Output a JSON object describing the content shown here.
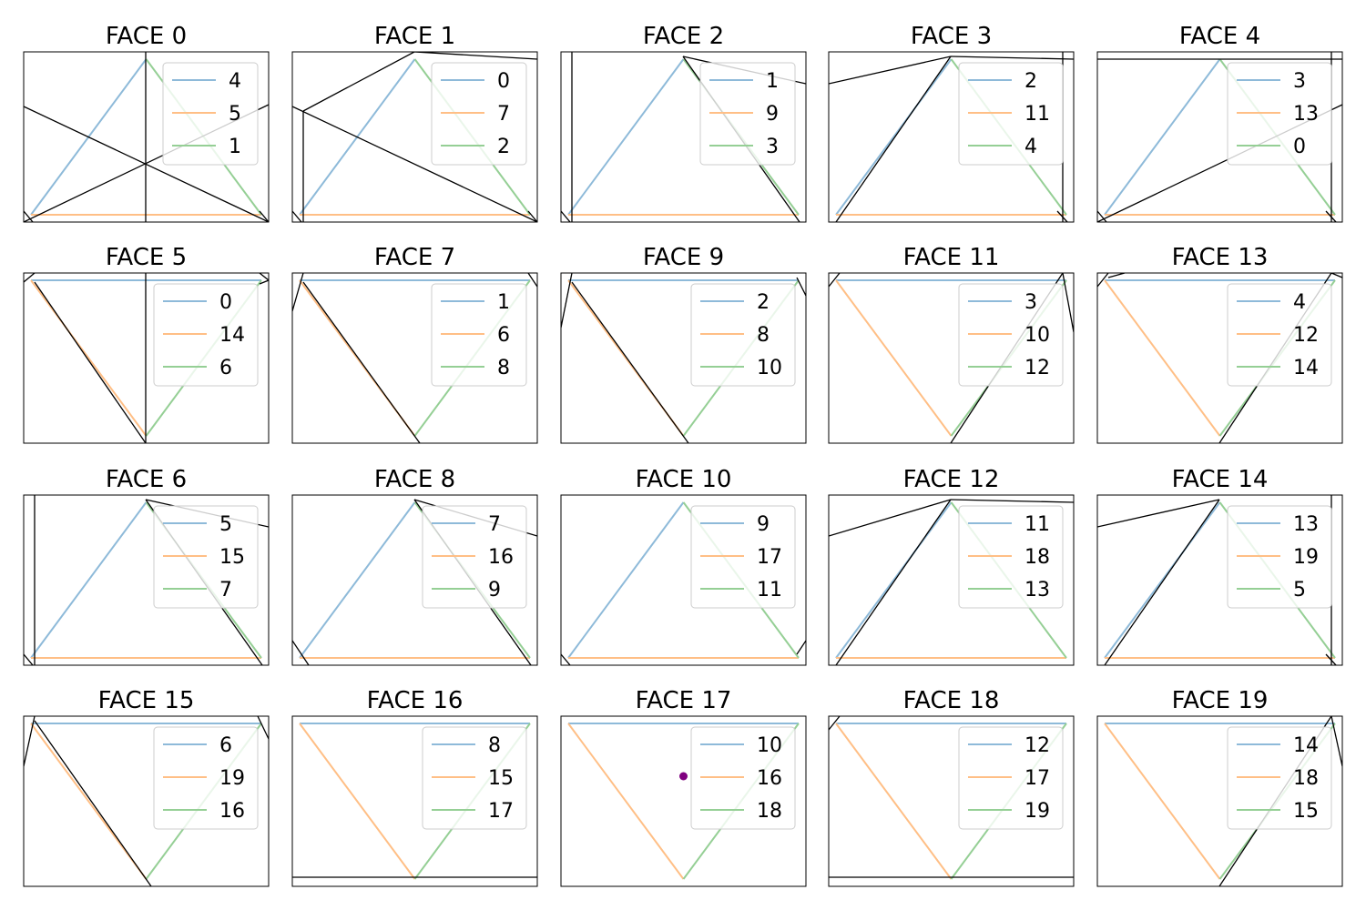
{
  "colors": {
    "blue": "#8ebad9",
    "orange": "#ffbf86",
    "green": "#95cf95",
    "black": "#000000",
    "purple": "#800080"
  },
  "chart_data": {
    "type": "line",
    "layout": {
      "rows": 4,
      "cols": 5
    },
    "panels": [
      {
        "title": "FACE 0",
        "legend": [
          "4",
          "5",
          "1"
        ]
      },
      {
        "title": "FACE 1",
        "legend": [
          "0",
          "7",
          "2"
        ]
      },
      {
        "title": "FACE 2",
        "legend": [
          "1",
          "9",
          "3"
        ]
      },
      {
        "title": "FACE 3",
        "legend": [
          "2",
          "11",
          "4"
        ]
      },
      {
        "title": "FACE 4",
        "legend": [
          "3",
          "13",
          "0"
        ]
      },
      {
        "title": "FACE 5",
        "legend": [
          "0",
          "14",
          "6"
        ]
      },
      {
        "title": "FACE 7",
        "legend": [
          "1",
          "6",
          "8"
        ]
      },
      {
        "title": "FACE 9",
        "legend": [
          "2",
          "8",
          "10"
        ]
      },
      {
        "title": "FACE 11",
        "legend": [
          "3",
          "10",
          "12"
        ]
      },
      {
        "title": "FACE 13",
        "legend": [
          "4",
          "12",
          "14"
        ]
      },
      {
        "title": "FACE 6",
        "legend": [
          "5",
          "15",
          "7"
        ]
      },
      {
        "title": "FACE 8",
        "legend": [
          "7",
          "16",
          "9"
        ]
      },
      {
        "title": "FACE 10",
        "legend": [
          "9",
          "17",
          "11"
        ]
      },
      {
        "title": "FACE 12",
        "legend": [
          "11",
          "18",
          "13"
        ]
      },
      {
        "title": "FACE 14",
        "legend": [
          "13",
          "19",
          "5"
        ]
      },
      {
        "title": "FACE 15",
        "legend": [
          "6",
          "19",
          "16"
        ]
      },
      {
        "title": "FACE 16",
        "legend": [
          "8",
          "15",
          "17"
        ]
      },
      {
        "title": "FACE 17",
        "legend": [
          "10",
          "16",
          "18"
        ],
        "point": true
      },
      {
        "title": "FACE 18",
        "legend": [
          "12",
          "17",
          "19"
        ]
      },
      {
        "title": "FACE 19",
        "legend": [
          "14",
          "18",
          "15"
        ]
      }
    ]
  }
}
